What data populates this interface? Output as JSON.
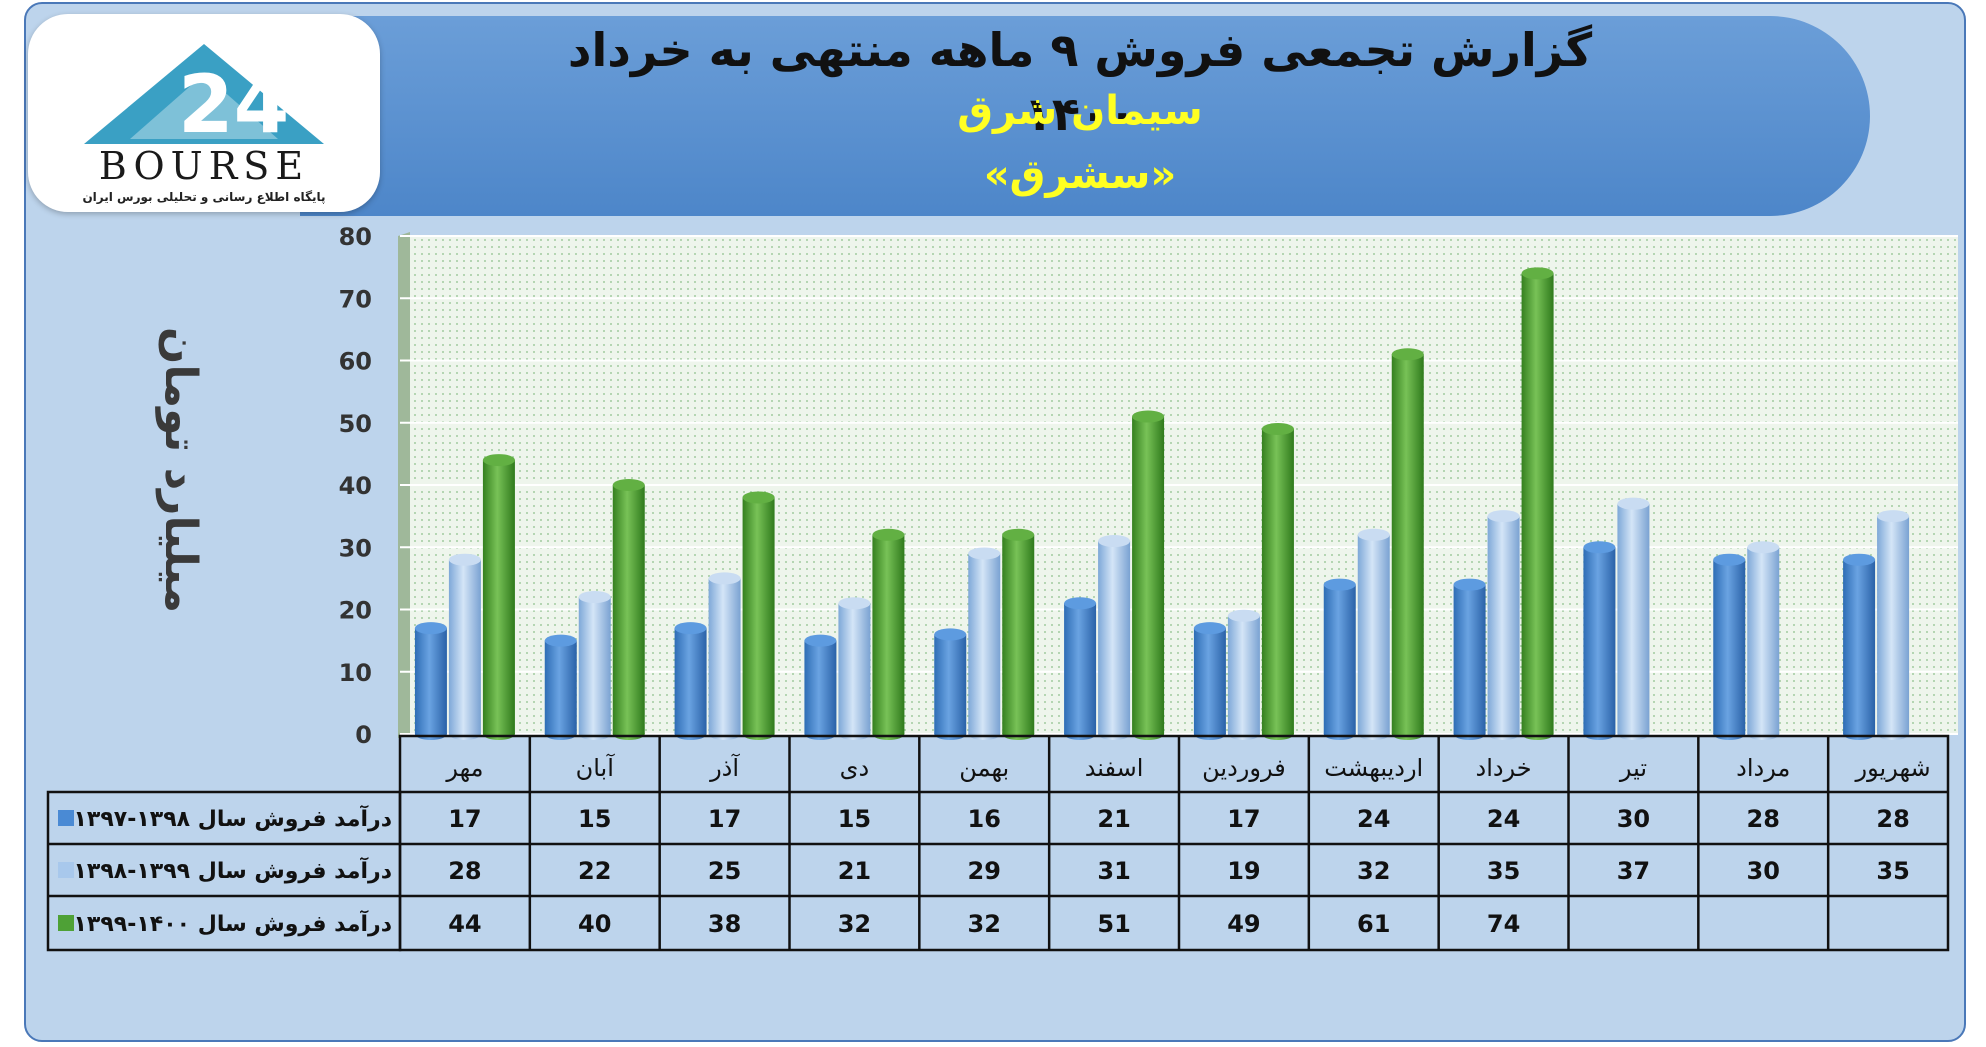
{
  "header": {
    "title": "گزارش تجمعی فروش ۹ ماهه منتهی به خرداد ۱۴۰۰",
    "company": "سیمان شرق",
    "symbol": "«سشرق»"
  },
  "logo": {
    "word": "BOURSE",
    "number": "24",
    "tagline": "پایگاه اطلاع رسانی و تحلیلی بورس ایران"
  },
  "colors": {
    "series1": "#4a8ad4",
    "series2": "#a8c8ec",
    "series3": "#4ea136",
    "banner": "#5b93d3",
    "background": "#bdd4ec"
  },
  "chart_data": {
    "type": "bar",
    "ylabel": "میلیارد تومان",
    "ylim": [
      0,
      80
    ],
    "yticks": [
      0,
      10,
      20,
      30,
      40,
      50,
      60,
      70,
      80
    ],
    "grid": true,
    "categories": [
      "مهر",
      "آبان",
      "آذر",
      "دی",
      "بهمن",
      "اسفند",
      "فروردین",
      "اردیبهشت",
      "خرداد",
      "تیر",
      "مرداد",
      "شهریور"
    ],
    "series": [
      {
        "name": "درآمد فروش سال ۱۳۹۸-۱۳۹۷",
        "color": "#4a8ad4",
        "values": [
          17,
          15,
          17,
          15,
          16,
          21,
          17,
          24,
          24,
          30,
          28,
          28
        ]
      },
      {
        "name": "درآمد فروش سال ۱۳۹۹-۱۳۹۸",
        "color": "#a8c8ec",
        "values": [
          28,
          22,
          25,
          21,
          29,
          31,
          19,
          32,
          35,
          37,
          30,
          35
        ]
      },
      {
        "name": "درآمد فروش سال ۱۴۰۰-۱۳۹۹",
        "color": "#4ea136",
        "values": [
          44,
          40,
          38,
          32,
          32,
          51,
          49,
          61,
          74,
          null,
          null,
          null
        ]
      }
    ]
  }
}
